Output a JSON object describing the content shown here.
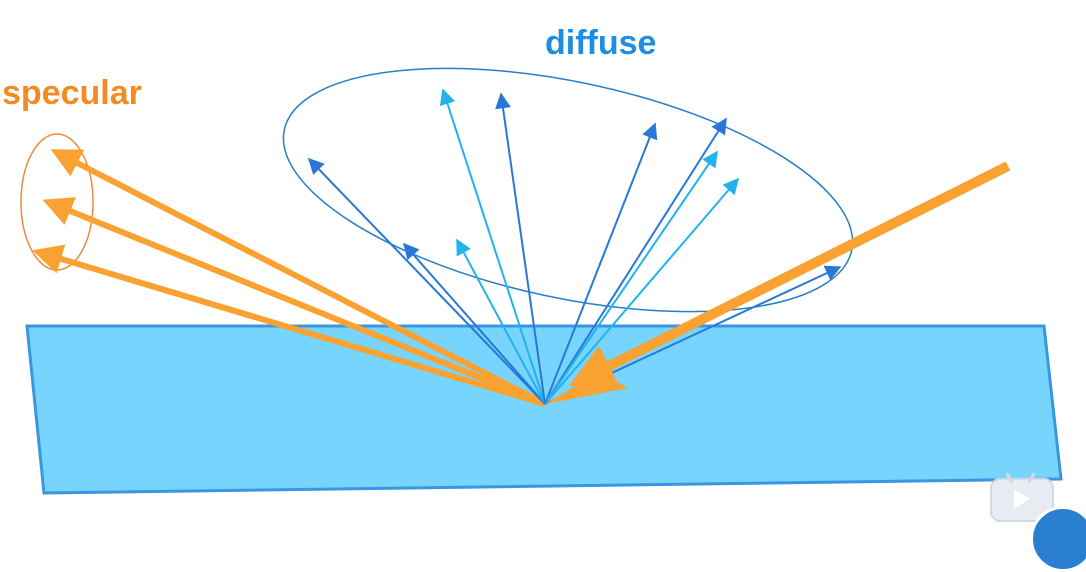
{
  "labels": {
    "specular": "specular",
    "diffuse": "diffuse"
  },
  "colors": {
    "specular": "#f9a232",
    "specular_text": "#f58a1f",
    "diffuse_text": "#1f8de3",
    "diffuse_dark": "#2a78d6",
    "diffuse_light": "#22b2ee",
    "surface_fill": "#76d4fd",
    "surface_stroke": "#3a96e0"
  },
  "icons": {
    "watermark": "video-player-icon"
  }
}
